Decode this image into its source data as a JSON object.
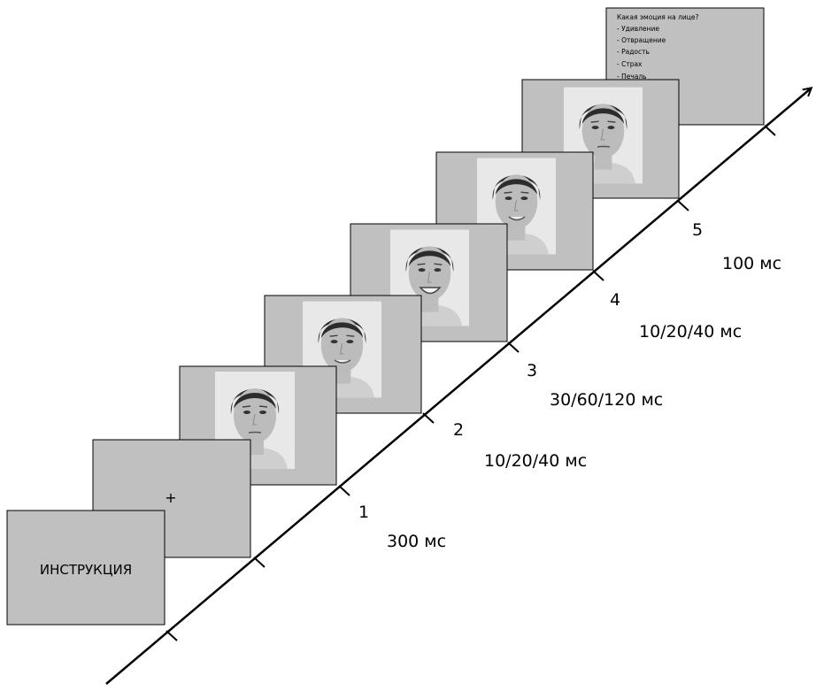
{
  "instruction_frame": {
    "label": "ИНСТРУКЦИЯ"
  },
  "fixation_frame": {
    "label": "+"
  },
  "question_frame": {
    "lines": [
      "Какая эмоция на лице?",
      "- Удивление",
      "- Отвращение",
      "- Радость",
      "- Страх",
      "- Печаль"
    ]
  },
  "timeline": {
    "steps": [
      {
        "number": "1",
        "duration": "300 мс"
      },
      {
        "number": "2",
        "duration": "10/20/40 мс"
      },
      {
        "number": "3",
        "duration": "30/60/120 мс"
      },
      {
        "number": "4",
        "duration": "10/20/40 мс"
      },
      {
        "number": "5",
        "duration": "100 мс"
      }
    ]
  }
}
